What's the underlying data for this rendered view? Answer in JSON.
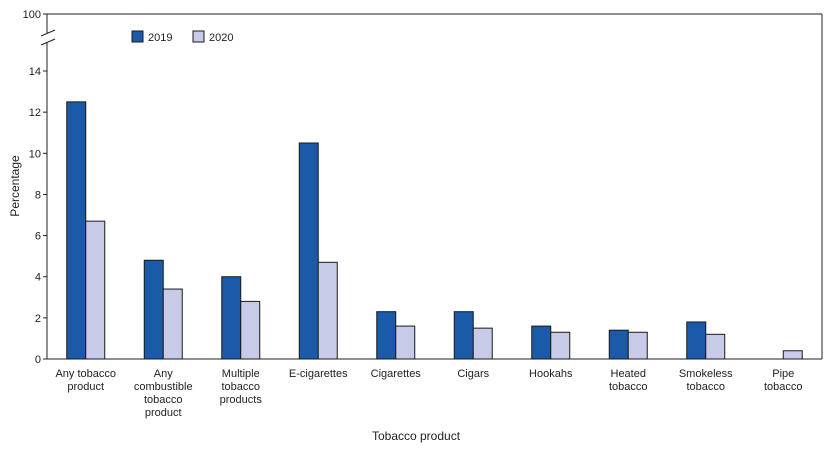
{
  "chart_data": {
    "type": "bar",
    "categories": [
      [
        "Any tobacco",
        "product"
      ],
      [
        "Any",
        "combustible",
        "tobacco",
        "product"
      ],
      [
        "Multiple",
        "tobacco",
        "products"
      ],
      [
        "E-cigarettes"
      ],
      [
        "Cigarettes"
      ],
      [
        "Cigars"
      ],
      [
        "Hookahs"
      ],
      [
        "Heated",
        "tobacco"
      ],
      [
        "Smokeless",
        "tobacco"
      ],
      [
        "Pipe",
        "tobacco"
      ]
    ],
    "series": [
      {
        "name": "2019",
        "color": "#1a5aa8",
        "values": [
          12.5,
          4.8,
          4.0,
          10.5,
          2.3,
          2.3,
          1.6,
          1.4,
          1.8,
          null
        ]
      },
      {
        "name": "2020",
        "color": "#c8cbe8",
        "values": [
          6.7,
          3.4,
          2.8,
          4.7,
          1.6,
          1.5,
          1.3,
          1.3,
          1.2,
          0.4
        ]
      }
    ],
    "xlabel": "Tobacco product",
    "ylabel": "Percentage",
    "ylim": [
      0,
      14
    ],
    "yticks": [
      "0",
      "2",
      "4",
      "6",
      "8",
      "10",
      "12",
      "14"
    ],
    "axis_break_top_label": "100",
    "legend_position": "top-left",
    "grid": false
  }
}
